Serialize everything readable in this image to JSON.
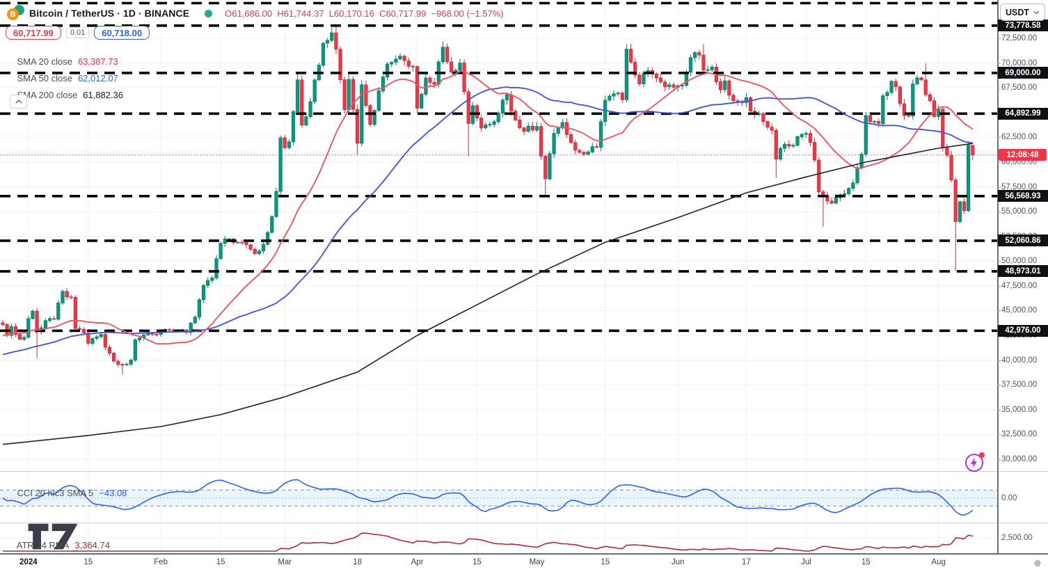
{
  "header": {
    "title": "Bitcoin / TetherUS · 1D · BINANCE",
    "ohlc_text": "O61,686.00  H61,744.37  L60,170.16  C60,717.99  −968.00 (−1.57%)"
  },
  "order_panel": {
    "sell_price": "60,717.99",
    "spread": "0.01",
    "buy_price": "60,718.00"
  },
  "legend": {
    "sma20": {
      "label": "SMA 20 close",
      "value": "63,387.73"
    },
    "sma50": {
      "label": "SMA 50 close",
      "value": "62,012.07"
    },
    "sma200": {
      "label": "SMA 200 close",
      "value": "61,882.36"
    }
  },
  "cci_pane": {
    "label": "CCI 20 hlc3 SMA 5",
    "value": "−43.08",
    "zero_label": "0.00"
  },
  "atr_pane": {
    "label": "ATR 14 RMA",
    "value": "3,364.74",
    "grid_label": "2,500.00"
  },
  "price_axis": {
    "currency": "USDT",
    "countdown": "12:08:48",
    "labels": [
      {
        "p": 72500,
        "t": "72,500.00"
      },
      {
        "p": 70000,
        "t": "70,000.00"
      },
      {
        "p": 67500,
        "t": "67,500.00"
      },
      {
        "p": 62500,
        "t": "62,500.00"
      },
      {
        "p": 60000,
        "t": "60,000.00"
      },
      {
        "p": 57500,
        "t": "57,500.00"
      },
      {
        "p": 55000,
        "t": "55,000.00"
      },
      {
        "p": 52500,
        "t": "52,500.00"
      },
      {
        "p": 50000,
        "t": "50,000.00"
      },
      {
        "p": 47500,
        "t": "47,500.00"
      },
      {
        "p": 45000,
        "t": "45,000.00"
      },
      {
        "p": 42500,
        "t": "42,500.00"
      },
      {
        "p": 40000,
        "t": "40,000.00"
      },
      {
        "p": 37500,
        "t": "37,500.00"
      },
      {
        "p": 35000,
        "t": "35,000.00"
      },
      {
        "p": 32500,
        "t": "32,500.00"
      },
      {
        "p": 30000,
        "t": "30,000.00"
      }
    ]
  },
  "chart_data": {
    "type": "candlestick",
    "title": "Bitcoin / TetherUS · 1D · BINANCE",
    "timeframe": "1D",
    "visible_price_range": [
      29150,
      76360
    ],
    "grid_step": 2500,
    "current_price": 60717.99,
    "last_ohlc": {
      "o": 61686.0,
      "h": 61744.37,
      "l": 60170.16,
      "c": 60717.99,
      "change": -968.0,
      "change_pct": -1.57
    },
    "level_lines": [
      {
        "price": 76048,
        "label": ""
      },
      {
        "price": 73778.58,
        "label": "73,778.58"
      },
      {
        "price": 69000,
        "label": "69,000.00"
      },
      {
        "price": 64892.99,
        "label": "64,892.99"
      },
      {
        "price": 56568.93,
        "label": "56,568.93"
      },
      {
        "price": 52060.86,
        "label": "52,060.86"
      },
      {
        "price": 48973.01,
        "label": "48,973.01"
      },
      {
        "price": 42976.0,
        "label": "42,976.00"
      }
    ],
    "close_anchors": [
      [
        0,
        43600
      ],
      [
        1,
        42500
      ],
      [
        2,
        43400
      ],
      [
        3,
        42600
      ],
      [
        4,
        42100
      ],
      [
        5,
        42300
      ],
      [
        6,
        44200
      ],
      [
        7,
        44950
      ],
      [
        8,
        42850
      ],
      [
        10,
        44000
      ],
      [
        12,
        44150
      ],
      [
        14,
        46950
      ],
      [
        16,
        46350
      ],
      [
        17,
        43200
      ],
      [
        19,
        42750
      ],
      [
        20,
        41700
      ],
      [
        23,
        42600
      ],
      [
        24,
        41300
      ],
      [
        26,
        39900
      ],
      [
        28,
        39550
      ],
      [
        30,
        40000
      ],
      [
        31,
        42050
      ],
      [
        33,
        42550
      ],
      [
        36,
        42600
      ],
      [
        38,
        43100
      ],
      [
        40,
        42950
      ],
      [
        43,
        42800
      ],
      [
        45,
        44350
      ],
      [
        47,
        47550
      ],
      [
        49,
        48300
      ],
      [
        51,
        51800
      ],
      [
        53,
        52250
      ],
      [
        55,
        51900
      ],
      [
        57,
        51650
      ],
      [
        59,
        50750
      ],
      [
        61,
        51700
      ],
      [
        63,
        54500
      ],
      [
        64,
        57050
      ],
      [
        65,
        62450
      ],
      [
        66,
        61450
      ],
      [
        67,
        62050
      ],
      [
        69,
        68300
      ],
      [
        70,
        63750
      ],
      [
        72,
        66100
      ],
      [
        73,
        68300
      ],
      [
        75,
        72000
      ],
      [
        77,
        73050
      ],
      [
        78,
        71400
      ],
      [
        80,
        65300
      ],
      [
        81,
        68350
      ],
      [
        83,
        61900
      ],
      [
        84,
        67800
      ],
      [
        86,
        63800
      ],
      [
        88,
        67200
      ],
      [
        90,
        69900
      ],
      [
        93,
        70700
      ],
      [
        96,
        69650
      ],
      [
        97,
        65450
      ],
      [
        99,
        68500
      ],
      [
        101,
        67850
      ],
      [
        103,
        71600
      ],
      [
        105,
        69100
      ],
      [
        107,
        70000
      ],
      [
        108,
        67100
      ],
      [
        109,
        63900
      ],
      [
        110,
        65700
      ],
      [
        112,
        63450
      ],
      [
        114,
        63800
      ],
      [
        116,
        64950
      ],
      [
        118,
        66800
      ],
      [
        120,
        64250
      ],
      [
        122,
        63100
      ],
      [
        125,
        63600
      ],
      [
        126,
        60600
      ],
      [
        127,
        58300
      ],
      [
        129,
        62900
      ],
      [
        131,
        64000
      ],
      [
        134,
        61200
      ],
      [
        136,
        60800
      ],
      [
        139,
        61500
      ],
      [
        141,
        66250
      ],
      [
        143,
        66900
      ],
      [
        145,
        66300
      ],
      [
        146,
        71400
      ],
      [
        147,
        70100
      ],
      [
        149,
        67900
      ],
      [
        151,
        69250
      ],
      [
        153,
        68500
      ],
      [
        155,
        67600
      ],
      [
        157,
        67550
      ],
      [
        159,
        67750
      ],
      [
        161,
        70550
      ],
      [
        162,
        71050
      ],
      [
        163,
        70800
      ],
      [
        164,
        69300
      ],
      [
        166,
        69600
      ],
      [
        168,
        67300
      ],
      [
        169,
        68200
      ],
      [
        170,
        66750
      ],
      [
        172,
        66050
      ],
      [
        174,
        66500
      ],
      [
        175,
        65150
      ],
      [
        177,
        64900
      ],
      [
        178,
        64100
      ],
      [
        180,
        63200
      ],
      [
        181,
        60300
      ],
      [
        183,
        61800
      ],
      [
        185,
        61700
      ],
      [
        187,
        62800
      ],
      [
        188,
        62900
      ],
      [
        189,
        62000
      ],
      [
        190,
        60200
      ],
      [
        191,
        57000
      ],
      [
        192,
        56600
      ],
      [
        194,
        55850
      ],
      [
        196,
        56700
      ],
      [
        198,
        57350
      ],
      [
        199,
        57900
      ],
      [
        201,
        60800
      ],
      [
        202,
        64700
      ],
      [
        204,
        64100
      ],
      [
        205,
        63900
      ],
      [
        206,
        66700
      ],
      [
        208,
        68150
      ],
      [
        209,
        67600
      ],
      [
        210,
        65900
      ],
      [
        211,
        64700
      ],
      [
        212,
        64650
      ],
      [
        213,
        67900
      ],
      [
        215,
        68300
      ],
      [
        216,
        66800
      ],
      [
        217,
        66200
      ],
      [
        218,
        64600
      ],
      [
        219,
        65350
      ],
      [
        220,
        61500
      ],
      [
        221,
        60700
      ],
      [
        222,
        58200
      ],
      [
        223,
        54000
      ],
      [
        224,
        56000
      ],
      [
        225,
        55100
      ],
      [
        226,
        61700
      ],
      [
        227,
        60718
      ]
    ],
    "specials": {
      "8": {
        "lo": 40200
      },
      "28": {
        "lo": 38550
      },
      "69": {
        "hi": 69000
      },
      "78": {
        "hi": 73778.58
      },
      "83": {
        "lo": 60760
      },
      "103": {
        "hi": 72200
      },
      "109": {
        "lo": 60600
      },
      "127": {
        "lo": 56500
      },
      "147": {
        "hi": 71940
      },
      "164": {
        "hi": 71900
      },
      "181": {
        "lo": 58400
      },
      "192": {
        "lo": 53480
      },
      "216": {
        "hi": 69980
      },
      "223": {
        "lo": 48973.01
      }
    },
    "sma200_points": [
      [
        0,
        31500
      ],
      [
        20,
        32400
      ],
      [
        37,
        33300
      ],
      [
        51,
        34500
      ],
      [
        66,
        36300
      ],
      [
        83,
        38800
      ],
      [
        97,
        42500
      ],
      [
        111,
        45600
      ],
      [
        125,
        48700
      ],
      [
        141,
        51900
      ],
      [
        158,
        54400
      ],
      [
        174,
        56900
      ],
      [
        188,
        58500
      ],
      [
        202,
        60000
      ],
      [
        219,
        61400
      ],
      [
        227,
        61880
      ]
    ],
    "indicators": [
      {
        "name": "SMA 20 close",
        "value": 63387.73
      },
      {
        "name": "SMA 50 close",
        "value": 62012.07
      },
      {
        "name": "SMA 200 close",
        "value": 61882.36
      },
      {
        "name": "CCI 20 hlc3 SMA 5",
        "value": -43.08
      },
      {
        "name": "ATR 14 RMA",
        "value": 3364.74
      }
    ],
    "time_labels": [
      {
        "d": 6,
        "t": "2024",
        "b": true
      },
      {
        "d": 20,
        "t": "15"
      },
      {
        "d": 37,
        "t": "Feb"
      },
      {
        "d": 51,
        "t": "15"
      },
      {
        "d": 66,
        "t": "Mar"
      },
      {
        "d": 83,
        "t": "18"
      },
      {
        "d": 97,
        "t": "Apr"
      },
      {
        "d": 111,
        "t": "15"
      },
      {
        "d": 125,
        "t": "May"
      },
      {
        "d": 141,
        "t": "15"
      },
      {
        "d": 158,
        "t": "Jun"
      },
      {
        "d": 174,
        "t": "17"
      },
      {
        "d": 188,
        "t": "Jul"
      },
      {
        "d": 202,
        "t": "15"
      },
      {
        "d": 219,
        "t": "Aug"
      }
    ],
    "colors": {
      "up": "#089981",
      "up_border": "#067a67",
      "down": "#f23645",
      "down_border": "#cc2b38",
      "sma20": "#f2545e",
      "sma50": "#4656dd",
      "sma200": "#1e2126",
      "cci": "#2962ff",
      "atr": "#b22833",
      "cci_band_fill": "#e3f1fb",
      "level_line": "#000000",
      "current_price_line": "#f23645",
      "grid": "#eef1f6"
    }
  }
}
